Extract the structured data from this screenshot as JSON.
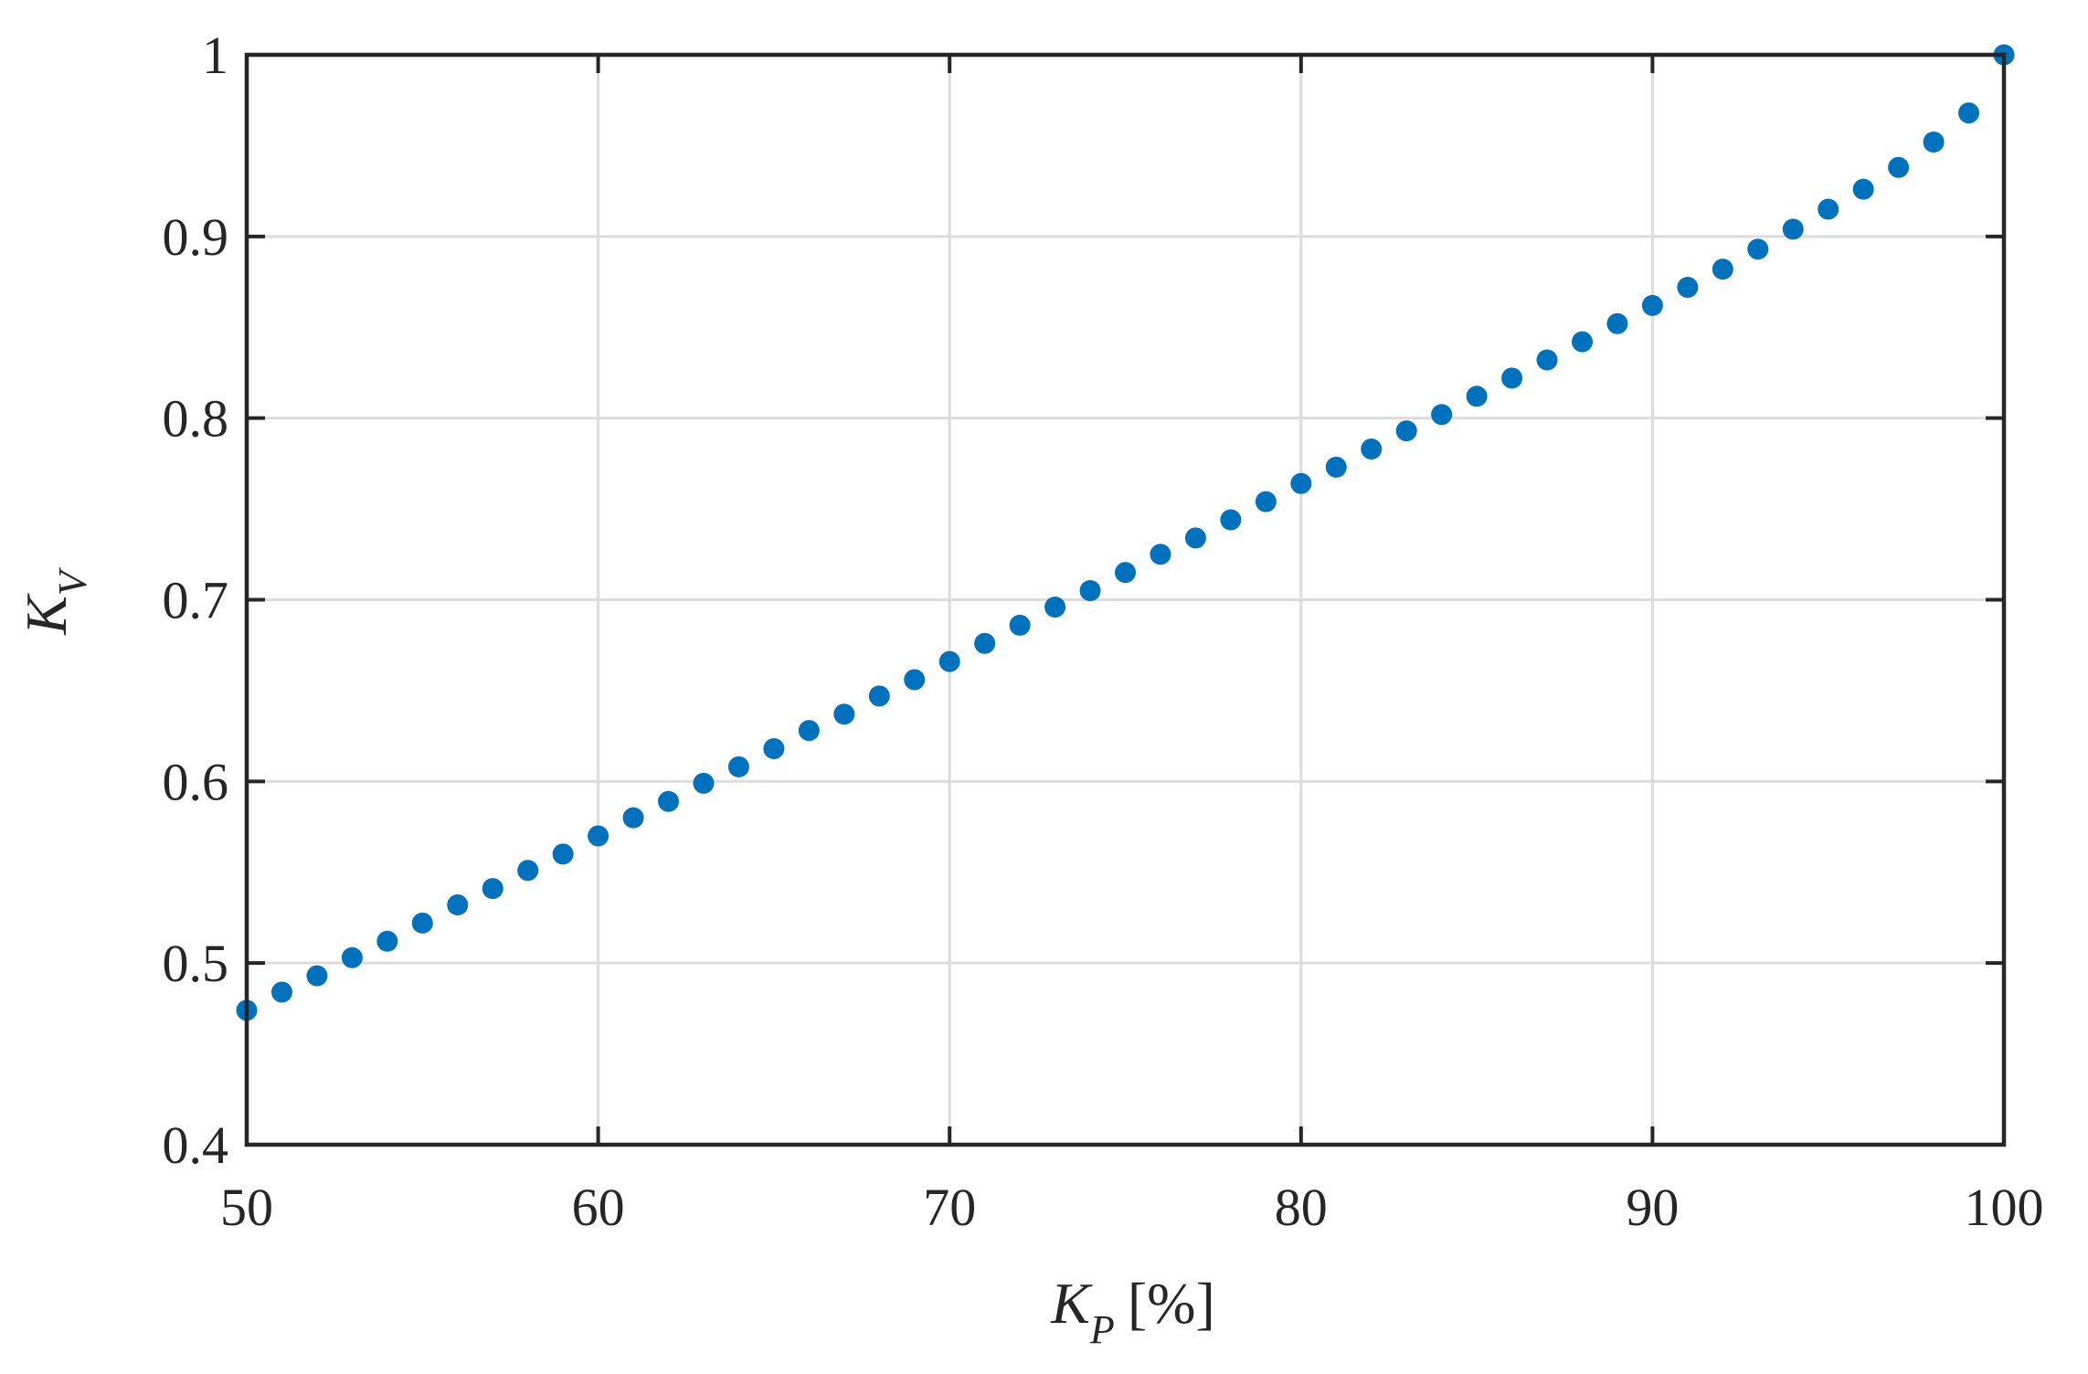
{
  "chart_data": {
    "type": "scatter",
    "title": "",
    "xlabel": {
      "main": "K",
      "sub": "P",
      "unit": "[%]"
    },
    "ylabel": {
      "main": "K",
      "sub": "V"
    },
    "xlim": [
      50,
      100
    ],
    "ylim": [
      0.4,
      1.0
    ],
    "x_ticks": [
      "50",
      "60",
      "70",
      "80",
      "90",
      "100"
    ],
    "y_ticks": [
      "0.4",
      "0.5",
      "0.6",
      "0.7",
      "0.8",
      "0.9",
      "1"
    ],
    "grid": true,
    "marker_color": "#0072bd",
    "x": [
      50,
      51,
      52,
      53,
      54,
      55,
      56,
      57,
      58,
      59,
      60,
      61,
      62,
      63,
      64,
      65,
      66,
      67,
      68,
      69,
      70,
      71,
      72,
      73,
      74,
      75,
      76,
      77,
      78,
      79,
      80,
      81,
      82,
      83,
      84,
      85,
      86,
      87,
      88,
      89,
      90,
      91,
      92,
      93,
      94,
      95,
      96,
      97,
      98,
      99,
      100
    ],
    "y": [
      0.474,
      0.484,
      0.493,
      0.503,
      0.512,
      0.522,
      0.532,
      0.541,
      0.551,
      0.56,
      0.57,
      0.58,
      0.589,
      0.599,
      0.608,
      0.618,
      0.628,
      0.637,
      0.647,
      0.656,
      0.666,
      0.676,
      0.686,
      0.696,
      0.705,
      0.715,
      0.725,
      0.734,
      0.744,
      0.754,
      0.764,
      0.773,
      0.783,
      0.793,
      0.802,
      0.812,
      0.822,
      0.832,
      0.842,
      0.852,
      0.862,
      0.872,
      0.882,
      0.893,
      0.904,
      0.915,
      0.926,
      0.938,
      0.952,
      0.968,
      1.0
    ]
  }
}
